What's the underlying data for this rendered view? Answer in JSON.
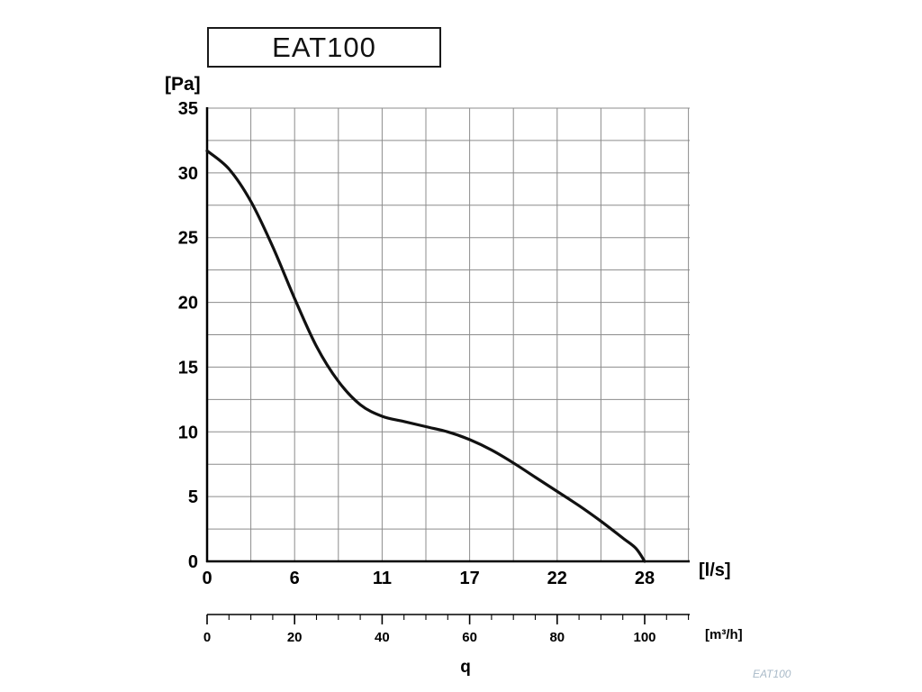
{
  "title_box": {
    "label": "EAT100"
  },
  "watermark": "EAT100",
  "colors": {
    "grid": "#8c8c8c",
    "axis": "#000000",
    "curve": "#111111",
    "watermark": "#a9bac8"
  },
  "chart_data": {
    "type": "line",
    "title": "EAT100",
    "xlabel": "q",
    "grid": true,
    "y_axis": {
      "unit": "[Pa]",
      "min": 0,
      "max": 35,
      "tick_step": 5,
      "grid_step": 2.5,
      "tick_labels": [
        "0",
        "5",
        "10",
        "15",
        "20",
        "25",
        "30",
        "35"
      ]
    },
    "x_axis_primary": {
      "unit": "[l/s]",
      "tick_labels": [
        "0",
        "6",
        "11",
        "17",
        "22",
        "28"
      ],
      "tick_positions_m3h": [
        0,
        20,
        40,
        60,
        80,
        100
      ]
    },
    "x_axis_secondary": {
      "unit": "[m³/h]",
      "tick_labels": [
        "0",
        "20",
        "40",
        "60",
        "80",
        "100"
      ],
      "tick_positions_m3h": [
        0,
        20,
        40,
        60,
        80,
        100
      ],
      "minor_tick_step_m3h": 5,
      "max_m3h": 110
    },
    "series": [
      {
        "name": "EAT100 fan curve",
        "points_m3h_pa": [
          [
            0,
            31.7
          ],
          [
            5,
            30.3
          ],
          [
            10,
            27.8
          ],
          [
            15,
            24.3
          ],
          [
            20,
            20.3
          ],
          [
            25,
            16.6
          ],
          [
            30,
            13.9
          ],
          [
            35,
            12.1
          ],
          [
            40,
            11.2
          ],
          [
            45,
            10.8
          ],
          [
            50,
            10.4
          ],
          [
            55,
            10.0
          ],
          [
            60,
            9.4
          ],
          [
            65,
            8.6
          ],
          [
            70,
            7.6
          ],
          [
            75,
            6.5
          ],
          [
            80,
            5.4
          ],
          [
            85,
            4.3
          ],
          [
            90,
            3.1
          ],
          [
            95,
            1.8
          ],
          [
            98,
            1.0
          ],
          [
            100,
            0
          ]
        ]
      }
    ]
  }
}
